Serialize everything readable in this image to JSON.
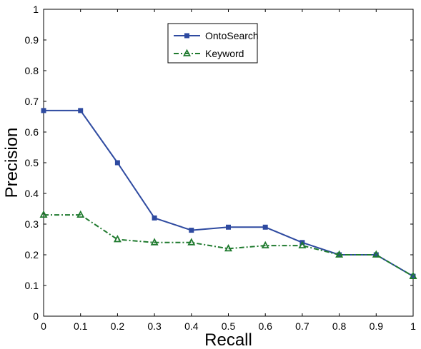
{
  "chart_data": {
    "type": "line",
    "title": "",
    "xlabel": "Recall",
    "ylabel": "Precision",
    "xlim": [
      0,
      1
    ],
    "ylim": [
      0,
      1
    ],
    "x": [
      0,
      0.1,
      0.2,
      0.3,
      0.4,
      0.5,
      0.6,
      0.7,
      0.8,
      0.9,
      1
    ],
    "x_tick_labels": [
      "0",
      "0.1",
      "0.2",
      "0.3",
      "0.4",
      "0.5",
      "0.6",
      "0.7",
      "0.8",
      "0.9",
      "1"
    ],
    "y_tick_labels": [
      "0",
      "0.1",
      "0.2",
      "0.3",
      "0.4",
      "0.5",
      "0.6",
      "0.7",
      "0.8",
      "0.9",
      "1"
    ],
    "grid": false,
    "legend_position": "top-center",
    "series": [
      {
        "name": "OntoSearch",
        "color": "#2e4aa0",
        "marker": "square",
        "line_style": "solid",
        "values": [
          0.67,
          0.67,
          0.5,
          0.32,
          0.28,
          0.29,
          0.29,
          0.24,
          0.2,
          0.2,
          0.13
        ]
      },
      {
        "name": "Keyword",
        "color": "#1f7a2e",
        "marker": "triangle",
        "line_style": "dash-dot",
        "values": [
          0.33,
          0.33,
          0.25,
          0.24,
          0.24,
          0.22,
          0.23,
          0.23,
          0.2,
          0.2,
          0.13
        ]
      }
    ]
  }
}
